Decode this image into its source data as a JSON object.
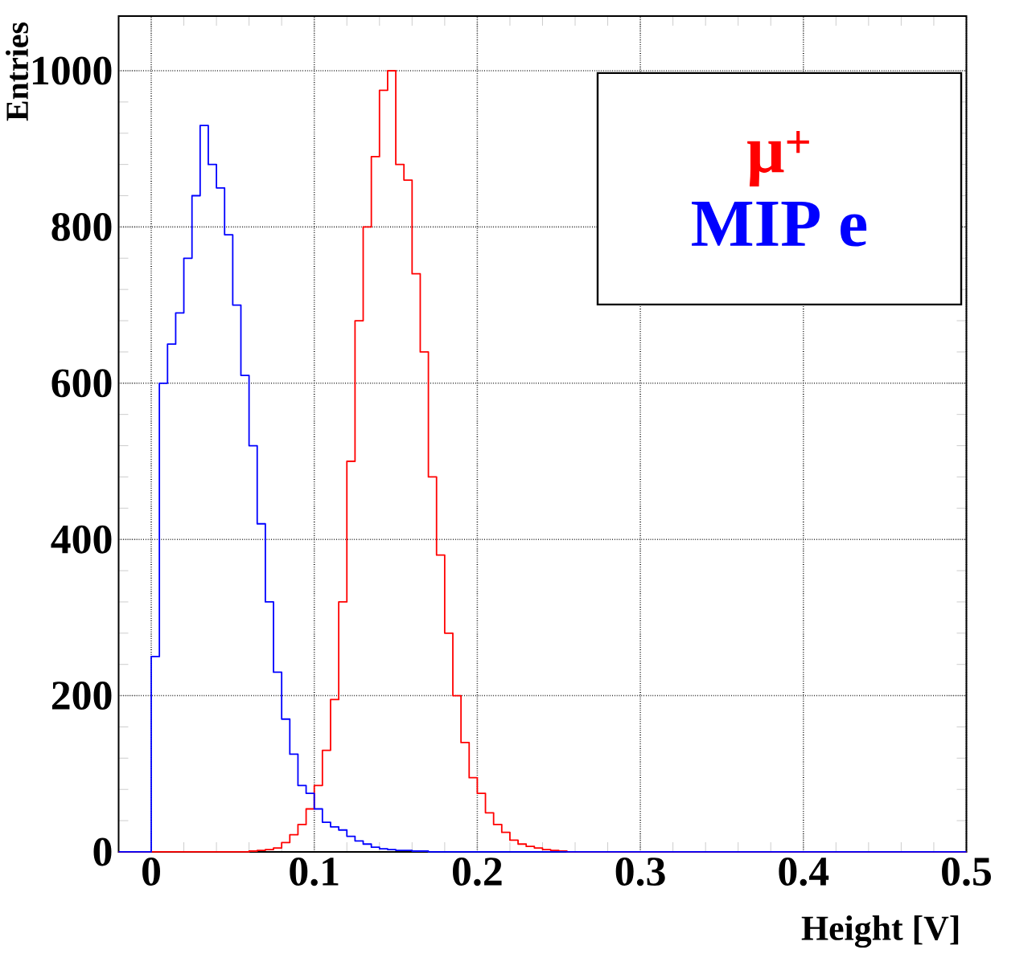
{
  "chart_data": {
    "type": "histogram",
    "xlabel": "Height [V]",
    "ylabel": "Entries",
    "bins": [
      -0.02,
      -0.015,
      -0.01,
      -0.005,
      0,
      0.005,
      0.01,
      0.015,
      0.02,
      0.025,
      0.03,
      0.035,
      0.04,
      0.045,
      0.05,
      0.055,
      0.06,
      0.065,
      0.07,
      0.075,
      0.08,
      0.085,
      0.09,
      0.095,
      0.1,
      0.105,
      0.11,
      0.115,
      0.12,
      0.125,
      0.13,
      0.135,
      0.14,
      0.145,
      0.15,
      0.155,
      0.16,
      0.165,
      0.17,
      0.175,
      0.18,
      0.185,
      0.19,
      0.195,
      0.2,
      0.205,
      0.21,
      0.215,
      0.22,
      0.225,
      0.23,
      0.235,
      0.24,
      0.245,
      0.25,
      0.255,
      0.26,
      0.265,
      0.27,
      0.275,
      0.28,
      0.285,
      0.29,
      0.295,
      0.3,
      0.5
    ],
    "series": [
      {
        "name": "μ$^{+}$",
        "color": "#ff0000",
        "values": [
          0,
          0,
          0,
          0,
          0,
          0,
          0,
          0,
          0,
          0,
          0,
          0,
          0,
          0,
          0,
          0,
          1,
          2,
          3,
          5,
          12,
          22,
          35,
          55,
          85,
          130,
          195,
          320,
          500,
          680,
          800,
          890,
          975,
          1000,
          880,
          860,
          740,
          640,
          480,
          380,
          280,
          200,
          140,
          95,
          75,
          50,
          35,
          25,
          15,
          10,
          7,
          5,
          3,
          2,
          1,
          0,
          0,
          0,
          0,
          0,
          0,
          0,
          0,
          0,
          0
        ]
      },
      {
        "name": "MIP e",
        "color": "#0000ff",
        "values": [
          0,
          0,
          0,
          0,
          250,
          600,
          650,
          690,
          760,
          840,
          930,
          880,
          850,
          790,
          700,
          610,
          520,
          420,
          320,
          230,
          170,
          125,
          85,
          75,
          55,
          38,
          32,
          28,
          20,
          14,
          10,
          6,
          4,
          3,
          2,
          2,
          1,
          1,
          0,
          0,
          0,
          0,
          0,
          0,
          0,
          0,
          0,
          0,
          0,
          0,
          0,
          0,
          0,
          0,
          0,
          0,
          0,
          0,
          0,
          0,
          0,
          0,
          0,
          0,
          0
        ]
      }
    ],
    "xlim": [
      -0.02,
      0.5
    ],
    "ylim": [
      0,
      1070
    ],
    "xticks": [
      0,
      0.1,
      0.2,
      0.3,
      0.4,
      0.5
    ],
    "yticks": [
      0,
      200,
      400,
      600,
      800,
      1000
    ],
    "grid": true,
    "legend": "top right"
  }
}
